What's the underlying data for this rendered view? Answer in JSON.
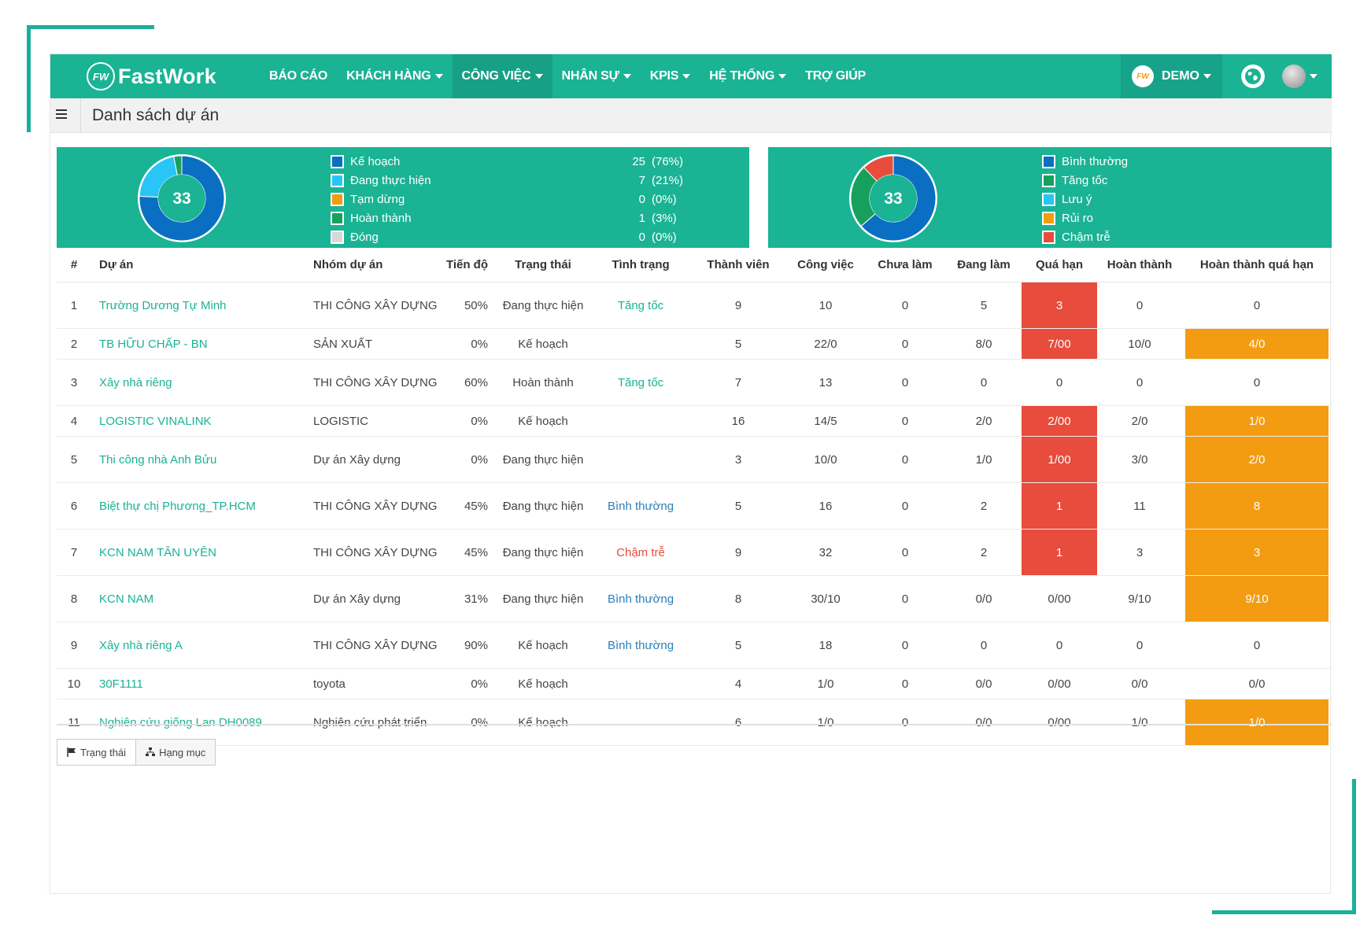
{
  "app": {
    "logo_badge": "FW",
    "logo_text": "FastWork"
  },
  "nav": {
    "items": [
      {
        "label": "BÁO CÁO",
        "dropdown": false,
        "active": false
      },
      {
        "label": "KHÁCH HÀNG",
        "dropdown": true,
        "active": false
      },
      {
        "label": "CÔNG VIỆC",
        "dropdown": true,
        "active": true
      },
      {
        "label": "NHÂN SỰ",
        "dropdown": true,
        "active": false
      },
      {
        "label": "KPIS",
        "dropdown": true,
        "active": false
      },
      {
        "label": "HỆ THỐNG",
        "dropdown": true,
        "active": false
      },
      {
        "label": "TRỢ GIÚP",
        "dropdown": false,
        "active": false
      }
    ],
    "demo_badge": "FW",
    "demo_label": "DEMO",
    "globe_icon": "globe-icon",
    "avatar_icon": "user-avatar-icon"
  },
  "page": {
    "title": "Danh sách dự án",
    "menu_icon": "hamburger-icon"
  },
  "summary_status": {
    "total": "33",
    "legend": [
      {
        "label": "Kế hoạch",
        "count": "25",
        "pct": "(76%)",
        "color": "#0a6fc2",
        "value": 25
      },
      {
        "label": "Đang thực hiện",
        "count": "7",
        "pct": "(21%)",
        "color": "#29c5f6",
        "value": 7
      },
      {
        "label": "Tạm dừng",
        "count": "0",
        "pct": "(0%)",
        "color": "#f39c12",
        "value": 0
      },
      {
        "label": "Hoàn thành",
        "count": "1",
        "pct": "(3%)",
        "color": "#17a05d",
        "value": 1
      },
      {
        "label": "Đóng",
        "count": "0",
        "pct": "(0%)",
        "color": "#d8d8d8",
        "value": 0
      }
    ]
  },
  "summary_condition": {
    "total": "33",
    "legend": [
      {
        "label": "Bình thường",
        "color": "#0a6fc2",
        "value": 21
      },
      {
        "label": "Tăng tốc",
        "color": "#17a05d",
        "value": 8
      },
      {
        "label": "Lưu ý",
        "color": "#29c5f6",
        "value": 0
      },
      {
        "label": "Rủi ro",
        "color": "#f39c12",
        "value": 0
      },
      {
        "label": "Chậm trễ",
        "color": "#e74c3c",
        "value": 4
      }
    ]
  },
  "table": {
    "headers": {
      "num": "#",
      "name": "Dự án",
      "group": "Nhóm dự án",
      "progress": "Tiến độ",
      "state": "Trạng thái",
      "condition": "Tình trạng",
      "members": "Thành viên",
      "tasks": "Công việc",
      "todo": "Chưa làm",
      "doing": "Đang làm",
      "overdue": "Quá hạn",
      "done": "Hoàn thành",
      "done_overdue": "Hoàn thành quá hạn"
    },
    "rows": [
      {
        "num": "1",
        "name": "Trường Dương Tự Minh",
        "group": "THI CÔNG XÂY DỰNG",
        "progress": "50%",
        "state": "Đang thực hiện",
        "condition": "Tăng tốc",
        "cond_type": "fast",
        "members": "9",
        "tasks": "10",
        "todo": "0",
        "doing": "5",
        "overdue": "3",
        "overdue_hl": true,
        "done": "0",
        "done_overdue": "0",
        "done_overdue_hl": false,
        "height": 59
      },
      {
        "num": "2",
        "name": "TB HỮU CHẤP - BN",
        "group": "SẢN XUẤT",
        "progress": "0%",
        "state": "Kế hoạch",
        "condition": "",
        "cond_type": "",
        "members": "5",
        "tasks": "22/0",
        "todo": "0",
        "doing": "8/0",
        "overdue": "7/00",
        "overdue_hl": true,
        "done": "10/0",
        "done_overdue": "4/0",
        "done_overdue_hl": true,
        "height": 39
      },
      {
        "num": "3",
        "name": "Xây nhà riêng",
        "group": "THI CÔNG XÂY DỰNG",
        "progress": "60%",
        "state": "Hoàn thành",
        "condition": "Tăng tốc",
        "cond_type": "fast",
        "members": "7",
        "tasks": "13",
        "todo": "0",
        "doing": "0",
        "overdue": "0",
        "overdue_hl": false,
        "done": "0",
        "done_overdue": "0",
        "done_overdue_hl": false,
        "height": 59
      },
      {
        "num": "4",
        "name": "LOGISTIC VINALINK",
        "group": "LOGISTIC",
        "progress": "0%",
        "state": "Kế hoạch",
        "condition": "",
        "cond_type": "",
        "members": "16",
        "tasks": "14/5",
        "todo": "0",
        "doing": "2/0",
        "overdue": "2/00",
        "overdue_hl": true,
        "done": "2/0",
        "done_overdue": "1/0",
        "done_overdue_hl": true,
        "height": 39
      },
      {
        "num": "5",
        "name": "Thi công nhà Anh Bửu",
        "group": "Dự án Xây dựng",
        "progress": "0%",
        "state": "Đang thực hiện",
        "condition": "",
        "cond_type": "",
        "members": "3",
        "tasks": "10/0",
        "todo": "0",
        "doing": "1/0",
        "overdue": "1/00",
        "overdue_hl": true,
        "done": "3/0",
        "done_overdue": "2/0",
        "done_overdue_hl": true,
        "height": 59
      },
      {
        "num": "6",
        "name": "Biệt thự chị Phương_TP.HCM",
        "group": "THI CÔNG XÂY DỰNG",
        "progress": "45%",
        "state": "Đang thực hiện",
        "condition": "Bình thường",
        "cond_type": "normal",
        "members": "5",
        "tasks": "16",
        "todo": "0",
        "doing": "2",
        "overdue": "1",
        "overdue_hl": true,
        "done": "11",
        "done_overdue": "8",
        "done_overdue_hl": true,
        "height": 59
      },
      {
        "num": "7",
        "name": "KCN NAM TÂN UYÊN",
        "group": "THI CÔNG XÂY DỰNG",
        "progress": "45%",
        "state": "Đang thực hiện",
        "condition": "Chậm trễ",
        "cond_type": "late",
        "members": "9",
        "tasks": "32",
        "todo": "0",
        "doing": "2",
        "overdue": "1",
        "overdue_hl": true,
        "done": "3",
        "done_overdue": "3",
        "done_overdue_hl": true,
        "height": 59
      },
      {
        "num": "8",
        "name": "KCN NAM",
        "group": "Dự án Xây dựng",
        "progress": "31%",
        "state": "Đang thực hiện",
        "condition": "Bình thường",
        "cond_type": "normal",
        "members": "8",
        "tasks": "30/10",
        "todo": "0",
        "doing": "0/0",
        "overdue": "0/00",
        "overdue_hl": false,
        "done": "9/10",
        "done_overdue": "9/10",
        "done_overdue_hl": true,
        "height": 59
      },
      {
        "num": "9",
        "name": "Xây nhà riêng A",
        "group": "THI CÔNG XÂY DỰNG",
        "progress": "90%",
        "state": "Kế hoạch",
        "condition": "Bình thường",
        "cond_type": "normal",
        "members": "5",
        "tasks": "18",
        "todo": "0",
        "doing": "0",
        "overdue": "0",
        "overdue_hl": false,
        "done": "0",
        "done_overdue": "0",
        "done_overdue_hl": false,
        "height": 59
      },
      {
        "num": "10",
        "name": "30F1111",
        "group": "toyota",
        "progress": "0%",
        "state": "Kế hoạch",
        "condition": "",
        "cond_type": "",
        "members": "4",
        "tasks": "1/0",
        "todo": "0",
        "doing": "0/0",
        "overdue": "0/00",
        "overdue_hl": false,
        "done": "0/0",
        "done_overdue": "0/0",
        "done_overdue_hl": false,
        "height": 39
      },
      {
        "num": "11",
        "name": "Nghiên cứu giống Lan DH0089",
        "group": "Nghiên cứu phát triển",
        "progress": "0%",
        "state": "Kế hoạch",
        "condition": "",
        "cond_type": "",
        "members": "6",
        "tasks": "1/0",
        "todo": "0",
        "doing": "0/0",
        "overdue": "0/00",
        "overdue_hl": false,
        "done": "1/0",
        "done_overdue": "1/0",
        "done_overdue_hl": true,
        "height": 59
      }
    ]
  },
  "footer_buttons": [
    {
      "label": "Trạng thái",
      "icon": "flag-icon"
    },
    {
      "label": "Hạng mục",
      "icon": "sitemap-icon"
    }
  ],
  "colors": {
    "brand": "#1ab394",
    "overdue": "#e74c3c",
    "done_overdue": "#f39c12"
  }
}
